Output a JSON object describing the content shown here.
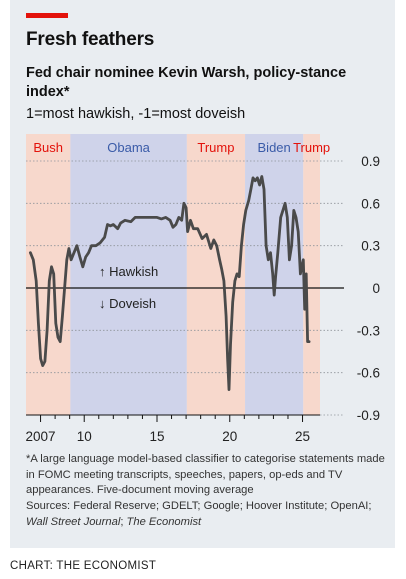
{
  "header": {
    "title": "Fresh feathers",
    "subtitle": "Fed chair nominee Kevin Warsh, policy-stance index*",
    "scale_note": "1=most hawkish, -1=most doveish"
  },
  "footer": {
    "footnote": "*A large language model-based classifier to categorise statements made in FOMC meeting transcripts, speeches, papers, op-eds and TV appearances. Five-document moving average",
    "sources_label": "Sources: Federal Reserve; GDELT; Google; Hoover Institute; OpenAI;",
    "sources_wsj": "Wall Street Journal",
    "sources_sep": ";",
    "sources_economist": "The Economist",
    "credit": "CHART: THE ECONOMIST"
  },
  "colors": {
    "accent": "#e3120b",
    "republican_fill": "#f7d8cc",
    "democrat_fill": "#cfd3ea",
    "republican_text": "#e3120b",
    "democrat_text": "#3a5ba8",
    "line": "#4a4a4a",
    "background": "#e9edf1"
  },
  "chart_data": {
    "type": "line",
    "y_axis": {
      "ylim": [
        -0.9,
        0.9
      ],
      "ticks": [
        0.9,
        0.6,
        0.3,
        0,
        -0.3,
        -0.6,
        -0.9
      ],
      "tick_labels": [
        "0.9",
        "0.6",
        "0.3",
        "0",
        "-0.3",
        "-0.6",
        "-0.9"
      ],
      "position": "right"
    },
    "x_axis": {
      "xlim": [
        2006.0,
        2026.2
      ],
      "ticks": [
        2007,
        2010,
        2015,
        2020,
        2025
      ],
      "tick_labels": [
        "2007",
        "10",
        "15",
        "20",
        "25"
      ]
    },
    "annotations": {
      "hawkish": "↑ Hawkish",
      "doveish": "↓ Doveish"
    },
    "presidencies": [
      {
        "name": "Bush",
        "start": 2006.0,
        "end": 2009.05,
        "party": "republican"
      },
      {
        "name": "Obama",
        "start": 2009.05,
        "end": 2017.05,
        "party": "democrat"
      },
      {
        "name": "Trump",
        "start": 2017.05,
        "end": 2021.05,
        "party": "republican"
      },
      {
        "name": "Biden",
        "start": 2021.05,
        "end": 2025.05,
        "party": "democrat"
      },
      {
        "name": "Trump",
        "start": 2025.05,
        "end": 2026.2,
        "party": "republican"
      }
    ],
    "series": [
      {
        "points": [
          [
            2006.3,
            0.25
          ],
          [
            2006.5,
            0.2
          ],
          [
            2006.7,
            0.05
          ],
          [
            2006.85,
            -0.25
          ],
          [
            2007.0,
            -0.5
          ],
          [
            2007.15,
            -0.55
          ],
          [
            2007.3,
            -0.52
          ],
          [
            2007.45,
            -0.3
          ],
          [
            2007.6,
            0.05
          ],
          [
            2007.75,
            0.15
          ],
          [
            2007.9,
            0.1
          ],
          [
            2008.05,
            -0.25
          ],
          [
            2008.2,
            -0.35
          ],
          [
            2008.35,
            -0.38
          ],
          [
            2008.5,
            -0.2
          ],
          [
            2008.65,
            0.0
          ],
          [
            2008.8,
            0.2
          ],
          [
            2008.95,
            0.28
          ],
          [
            2009.1,
            0.2
          ],
          [
            2009.3,
            0.25
          ],
          [
            2009.5,
            0.3
          ],
          [
            2009.7,
            0.22
          ],
          [
            2009.9,
            0.15
          ],
          [
            2010.1,
            0.22
          ],
          [
            2010.3,
            0.25
          ],
          [
            2010.5,
            0.3
          ],
          [
            2010.8,
            0.3
          ],
          [
            2011.1,
            0.32
          ],
          [
            2011.4,
            0.36
          ],
          [
            2011.6,
            0.45
          ],
          [
            2011.8,
            0.44
          ],
          [
            2012.0,
            0.45
          ],
          [
            2012.3,
            0.42
          ],
          [
            2012.5,
            0.46
          ],
          [
            2012.8,
            0.48
          ],
          [
            2013.2,
            0.47
          ],
          [
            2013.5,
            0.5
          ],
          [
            2013.8,
            0.5
          ],
          [
            2014.2,
            0.5
          ],
          [
            2014.6,
            0.5
          ],
          [
            2015.0,
            0.5
          ],
          [
            2015.3,
            0.49
          ],
          [
            2015.6,
            0.5
          ],
          [
            2015.9,
            0.48
          ],
          [
            2016.1,
            0.43
          ],
          [
            2016.3,
            0.45
          ],
          [
            2016.5,
            0.5
          ],
          [
            2016.7,
            0.48
          ],
          [
            2016.85,
            0.6
          ],
          [
            2017.0,
            0.57
          ],
          [
            2017.1,
            0.4
          ],
          [
            2017.3,
            0.48
          ],
          [
            2017.5,
            0.42
          ],
          [
            2017.8,
            0.42
          ],
          [
            2018.1,
            0.35
          ],
          [
            2018.4,
            0.38
          ],
          [
            2018.7,
            0.28
          ],
          [
            2018.9,
            0.34
          ],
          [
            2019.1,
            0.3
          ],
          [
            2019.3,
            0.2
          ],
          [
            2019.45,
            0.13
          ],
          [
            2019.6,
            0.05
          ],
          [
            2019.75,
            -0.2
          ],
          [
            2019.85,
            -0.5
          ],
          [
            2019.95,
            -0.72
          ],
          [
            2020.05,
            -0.4
          ],
          [
            2020.2,
            -0.1
          ],
          [
            2020.35,
            0.05
          ],
          [
            2020.5,
            0.1
          ],
          [
            2020.65,
            0.08
          ],
          [
            2020.8,
            0.3
          ],
          [
            2020.95,
            0.45
          ],
          [
            2021.1,
            0.55
          ],
          [
            2021.3,
            0.62
          ],
          [
            2021.45,
            0.7
          ],
          [
            2021.6,
            0.78
          ],
          [
            2021.75,
            0.76
          ],
          [
            2021.9,
            0.78
          ],
          [
            2022.05,
            0.73
          ],
          [
            2022.2,
            0.79
          ],
          [
            2022.35,
            0.7
          ],
          [
            2022.5,
            0.3
          ],
          [
            2022.65,
            0.2
          ],
          [
            2022.8,
            0.25
          ],
          [
            2022.95,
            0.1
          ],
          [
            2023.05,
            -0.05
          ],
          [
            2023.15,
            0.08
          ],
          [
            2023.3,
            0.25
          ],
          [
            2023.5,
            0.5
          ],
          [
            2023.65,
            0.55
          ],
          [
            2023.8,
            0.6
          ],
          [
            2023.95,
            0.5
          ],
          [
            2024.1,
            0.2
          ],
          [
            2024.25,
            0.3
          ],
          [
            2024.4,
            0.55
          ],
          [
            2024.55,
            0.5
          ],
          [
            2024.7,
            0.4
          ],
          [
            2024.85,
            0.1
          ],
          [
            2024.95,
            0.15
          ],
          [
            2025.05,
            0.2
          ],
          [
            2025.15,
            -0.15
          ],
          [
            2025.25,
            0.1
          ],
          [
            2025.35,
            -0.38
          ],
          [
            2025.45,
            -0.38
          ]
        ]
      }
    ]
  }
}
